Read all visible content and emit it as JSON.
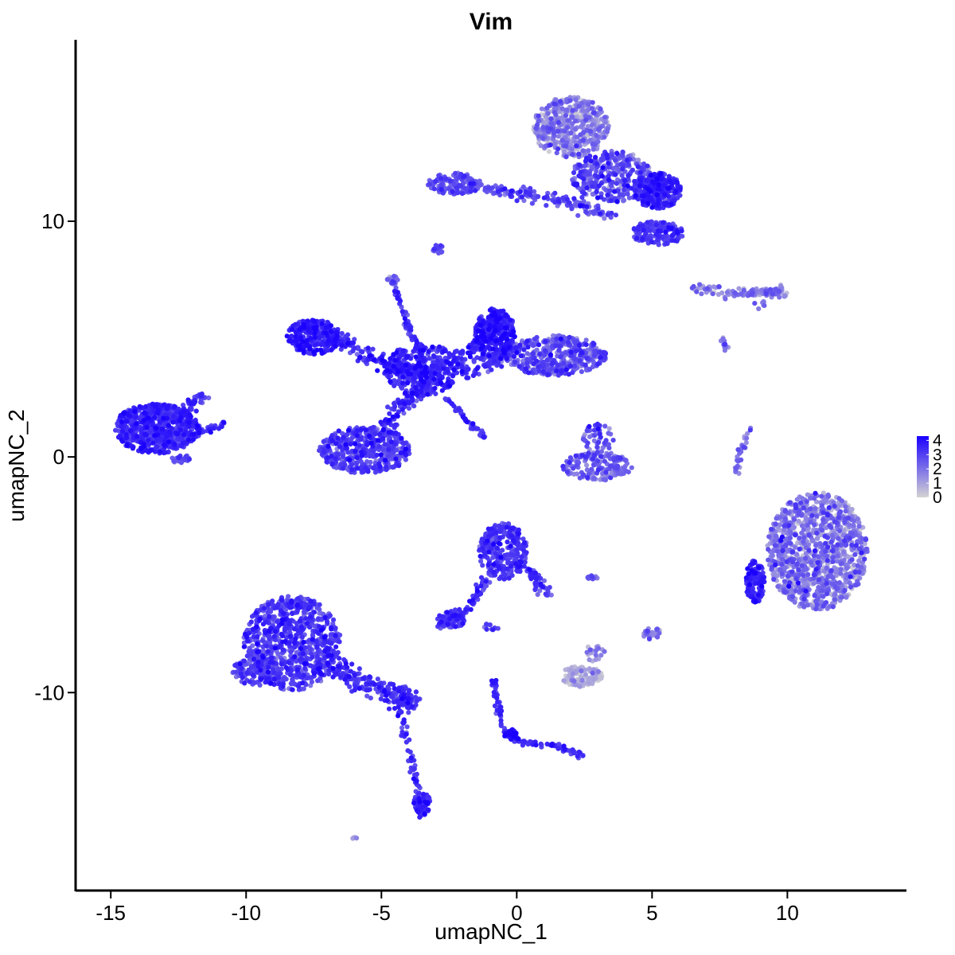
{
  "chart_data": {
    "type": "scatter",
    "title": "Vim",
    "xlabel": "umapNC_1",
    "ylabel": "umapNC_2",
    "xlim": [
      -16.3,
      14.4
    ],
    "ylim": [
      -18.4,
      17.7
    ],
    "x_ticks": [
      -15,
      -10,
      -5,
      0,
      5,
      10
    ],
    "x_tick_labels": [
      "-15",
      "-10",
      "-5",
      "0",
      "5",
      "10"
    ],
    "y_ticks": [
      -10,
      0,
      10
    ],
    "y_tick_labels": [
      "-10",
      "0",
      "10"
    ],
    "grid": false,
    "legend": {
      "position": "right",
      "type": "colorbar",
      "ticks": [
        0,
        1,
        2,
        3,
        4
      ],
      "labels": [
        "0",
        "1",
        "2",
        "3",
        "4"
      ],
      "range": [
        0,
        4.3
      ],
      "colors": [
        "#d3d3d3",
        "#1a00ff"
      ]
    },
    "color_scale": {
      "low": "#d3d3d3",
      "high": "#1a00ff"
    },
    "clusters": [
      {
        "name": "left-blob",
        "shape": "blob",
        "cx": -13.3,
        "cy": 1.2,
        "rx": 1.6,
        "ry": 1.05,
        "n": 650,
        "expr": 3.3,
        "jitter": 0.5
      },
      {
        "name": "left-blob-tail",
        "shape": "line",
        "path": [
          [
            -12.6,
            1.6
          ],
          [
            -11.6,
            2.6
          ]
        ],
        "width": 0.25,
        "n": 60,
        "expr": 3.1,
        "jitter": 0.5
      },
      {
        "name": "left-blob-tail2",
        "shape": "line",
        "path": [
          [
            -12.5,
            0.8
          ],
          [
            -10.8,
            1.4
          ]
        ],
        "width": 0.2,
        "n": 40,
        "expr": 3.0,
        "jitter": 0.5
      },
      {
        "name": "left-blob-foot",
        "shape": "blob",
        "cx": -12.4,
        "cy": -0.1,
        "rx": 0.35,
        "ry": 0.2,
        "n": 25,
        "expr": 2.6,
        "jitter": 0.5
      },
      {
        "name": "center-left-top",
        "shape": "blob",
        "cx": -7.5,
        "cy": 5.1,
        "rx": 1.0,
        "ry": 0.75,
        "n": 260,
        "expr": 3.5,
        "jitter": 0.5
      },
      {
        "name": "center-left-bottom",
        "shape": "blob",
        "cx": -5.6,
        "cy": 0.3,
        "rx": 1.7,
        "ry": 1.0,
        "n": 450,
        "expr": 2.9,
        "jitter": 0.6
      },
      {
        "name": "center-right-top",
        "shape": "blob",
        "cx": -0.8,
        "cy": 5.2,
        "rx": 0.75,
        "ry": 1.1,
        "n": 300,
        "expr": 3.6,
        "jitter": 0.5
      },
      {
        "name": "center-right-fan",
        "shape": "blob",
        "cx": 1.4,
        "cy": 4.3,
        "rx": 1.9,
        "ry": 0.85,
        "n": 420,
        "expr": 2.5,
        "jitter": 0.7
      },
      {
        "name": "center-core",
        "shape": "blob",
        "cx": -3.5,
        "cy": 3.7,
        "rx": 1.4,
        "ry": 1.1,
        "n": 260,
        "expr": 3.4,
        "jitter": 0.5
      },
      {
        "name": "center-arm-1",
        "shape": "line",
        "path": [
          [
            -7.0,
            5.2
          ],
          [
            -5.0,
            4.0
          ],
          [
            -3.5,
            3.5
          ]
        ],
        "width": 0.35,
        "n": 160,
        "expr": 3.4,
        "jitter": 0.5
      },
      {
        "name": "center-arm-2",
        "shape": "line",
        "path": [
          [
            -5.0,
            1.2
          ],
          [
            -3.8,
            2.8
          ],
          [
            -2.2,
            4.2
          ],
          [
            -1.0,
            5.0
          ]
        ],
        "width": 0.35,
        "n": 200,
        "expr": 3.3,
        "jitter": 0.5
      },
      {
        "name": "center-arm-3",
        "shape": "line",
        "path": [
          [
            -4.6,
            7.5
          ],
          [
            -4.0,
            5.5
          ],
          [
            -3.4,
            4.0
          ]
        ],
        "width": 0.12,
        "n": 70,
        "expr": 3.2,
        "jitter": 0.5
      },
      {
        "name": "center-arm-4",
        "shape": "line",
        "path": [
          [
            -2.6,
            2.5
          ],
          [
            -1.2,
            0.8
          ]
        ],
        "width": 0.1,
        "n": 50,
        "expr": 3.3,
        "jitter": 0.5
      },
      {
        "name": "center-arm-5",
        "shape": "line",
        "path": [
          [
            -2.0,
            3.6
          ],
          [
            0.0,
            4.5
          ]
        ],
        "width": 0.35,
        "n": 80,
        "expr": 3.0,
        "jitter": 0.6
      },
      {
        "name": "center-speck",
        "shape": "blob",
        "cx": -4.6,
        "cy": 7.5,
        "rx": 0.2,
        "ry": 0.2,
        "n": 15,
        "expr": 2.0,
        "jitter": 0.6
      },
      {
        "name": "top-right-head",
        "shape": "blob",
        "cx": 2.0,
        "cy": 14.0,
        "rx": 1.4,
        "ry": 1.3,
        "n": 500,
        "expr": 1.3,
        "jitter": 0.8
      },
      {
        "name": "top-right-body",
        "shape": "blob",
        "cx": 3.5,
        "cy": 11.9,
        "rx": 1.5,
        "ry": 1.1,
        "n": 330,
        "expr": 2.6,
        "jitter": 0.7
      },
      {
        "name": "top-right-right",
        "shape": "blob",
        "cx": 5.2,
        "cy": 11.3,
        "rx": 0.9,
        "ry": 0.75,
        "n": 260,
        "expr": 3.4,
        "jitter": 0.5
      },
      {
        "name": "top-right-low",
        "shape": "blob",
        "cx": 5.2,
        "cy": 9.5,
        "rx": 1.0,
        "ry": 0.5,
        "n": 160,
        "expr": 3.0,
        "jitter": 0.5
      },
      {
        "name": "top-left-arm",
        "shape": "blob",
        "cx": -2.3,
        "cy": 11.6,
        "rx": 1.0,
        "ry": 0.45,
        "n": 140,
        "expr": 2.5,
        "jitter": 0.6
      },
      {
        "name": "top-arm-line",
        "shape": "line",
        "path": [
          [
            -1.5,
            11.4
          ],
          [
            0.5,
            11.1
          ],
          [
            2.0,
            10.8
          ],
          [
            3.5,
            10.2
          ]
        ],
        "width": 0.25,
        "n": 150,
        "expr": 2.7,
        "jitter": 0.6
      },
      {
        "name": "top-speck",
        "shape": "blob",
        "cx": -2.9,
        "cy": 8.8,
        "rx": 0.2,
        "ry": 0.2,
        "n": 14,
        "expr": 2.9,
        "jitter": 0.5
      },
      {
        "name": "right-thin",
        "shape": "line",
        "path": [
          [
            6.6,
            7.2
          ],
          [
            8.0,
            6.9
          ],
          [
            9.0,
            7.0
          ],
          [
            10.0,
            6.9
          ]
        ],
        "width": 0.2,
        "n": 110,
        "expr": 1.6,
        "jitter": 0.7
      },
      {
        "name": "right-thin-2",
        "shape": "line",
        "path": [
          [
            8.8,
            6.3
          ],
          [
            9.8,
            7.2
          ]
        ],
        "width": 0.15,
        "n": 20,
        "expr": 2.0,
        "jitter": 0.6
      },
      {
        "name": "right-specks",
        "shape": "blob",
        "cx": 7.7,
        "cy": 4.8,
        "rx": 0.2,
        "ry": 0.3,
        "n": 10,
        "expr": 2.0,
        "jitter": 0.6
      },
      {
        "name": "mid-right-small",
        "shape": "blob",
        "cx": 3.0,
        "cy": -0.4,
        "rx": 1.3,
        "ry": 0.6,
        "n": 170,
        "expr": 2.1,
        "jitter": 0.7
      },
      {
        "name": "mid-right-small-2",
        "shape": "blob",
        "cx": 3.0,
        "cy": 0.8,
        "rx": 0.6,
        "ry": 0.6,
        "n": 50,
        "expr": 2.3,
        "jitter": 0.7
      },
      {
        "name": "mid-right-line",
        "shape": "line",
        "path": [
          [
            8.1,
            -0.7
          ],
          [
            8.3,
            0.3
          ],
          [
            8.6,
            1.2
          ]
        ],
        "width": 0.12,
        "n": 30,
        "expr": 2.0,
        "jitter": 0.7
      },
      {
        "name": "far-right-big",
        "shape": "blob",
        "cx": 11.1,
        "cy": -4.0,
        "rx": 1.85,
        "ry": 2.5,
        "n": 1100,
        "expr": 1.6,
        "jitter": 0.8
      },
      {
        "name": "far-right-edge",
        "shape": "blob",
        "cx": 8.8,
        "cy": -5.3,
        "rx": 0.35,
        "ry": 0.9,
        "n": 130,
        "expr": 3.4,
        "jitter": 0.5
      },
      {
        "name": "lower-mid-blob",
        "shape": "blob",
        "cx": -0.5,
        "cy": -4.0,
        "rx": 0.9,
        "ry": 1.2,
        "n": 260,
        "expr": 3.1,
        "jitter": 0.5
      },
      {
        "name": "lower-mid-tail",
        "shape": "line",
        "path": [
          [
            0.1,
            -4.4
          ],
          [
            1.2,
            -5.8
          ]
        ],
        "width": 0.25,
        "n": 55,
        "expr": 3.0,
        "jitter": 0.5
      },
      {
        "name": "lower-mid-arm",
        "shape": "line",
        "path": [
          [
            -0.9,
            -4.8
          ],
          [
            -1.9,
            -6.6
          ],
          [
            -2.8,
            -7.0
          ]
        ],
        "width": 0.2,
        "n": 80,
        "expr": 3.1,
        "jitter": 0.5
      },
      {
        "name": "lower-mid-foot",
        "shape": "blob",
        "cx": -2.4,
        "cy": -6.9,
        "rx": 0.55,
        "ry": 0.35,
        "n": 70,
        "expr": 3.1,
        "jitter": 0.5
      },
      {
        "name": "lower-mid-specks",
        "shape": "blob",
        "cx": -0.9,
        "cy": -7.2,
        "rx": 0.4,
        "ry": 0.15,
        "n": 10,
        "expr": 2.8,
        "jitter": 0.5
      },
      {
        "name": "bottom-left-big",
        "shape": "blob",
        "cx": -8.3,
        "cy": -7.9,
        "rx": 1.8,
        "ry": 2.0,
        "n": 750,
        "expr": 2.9,
        "jitter": 0.6
      },
      {
        "name": "bottom-left-lobe",
        "shape": "blob",
        "cx": -9.6,
        "cy": -9.1,
        "rx": 0.9,
        "ry": 0.6,
        "n": 150,
        "expr": 2.8,
        "jitter": 0.6
      },
      {
        "name": "bottom-left-tail",
        "shape": "line",
        "path": [
          [
            -7.2,
            -8.6
          ],
          [
            -5.8,
            -9.5
          ],
          [
            -4.5,
            -10.1
          ],
          [
            -3.8,
            -10.4
          ]
        ],
        "width": 0.45,
        "n": 230,
        "expr": 3.2,
        "jitter": 0.5
      },
      {
        "name": "bottom-left-tail2",
        "shape": "line",
        "path": [
          [
            -4.4,
            -10.6
          ],
          [
            -3.9,
            -12.5
          ],
          [
            -3.6,
            -14.5
          ],
          [
            -3.5,
            -15.2
          ]
        ],
        "width": 0.15,
        "n": 80,
        "expr": 3.1,
        "jitter": 0.5
      },
      {
        "name": "bottom-left-foot",
        "shape": "blob",
        "cx": -3.5,
        "cy": -14.7,
        "rx": 0.3,
        "ry": 0.5,
        "n": 60,
        "expr": 3.3,
        "jitter": 0.5
      },
      {
        "name": "bottom-speck",
        "shape": "blob",
        "cx": -6.0,
        "cy": -16.2,
        "rx": 0.15,
        "ry": 0.1,
        "n": 4,
        "expr": 1.5,
        "jitter": 0.5
      },
      {
        "name": "bottom-mid-line",
        "shape": "line",
        "path": [
          [
            -0.9,
            -9.4
          ],
          [
            -0.5,
            -11.5
          ],
          [
            0.0,
            -12.1
          ],
          [
            1.2,
            -12.2
          ],
          [
            2.5,
            -12.7
          ]
        ],
        "width": 0.12,
        "n": 110,
        "expr": 3.3,
        "jitter": 0.5
      },
      {
        "name": "bottom-mid-knot",
        "shape": "blob",
        "cx": -0.2,
        "cy": -11.8,
        "rx": 0.25,
        "ry": 0.25,
        "n": 30,
        "expr": 3.8,
        "jitter": 0.4
      },
      {
        "name": "gray-cluster",
        "shape": "blob",
        "cx": 2.4,
        "cy": -9.3,
        "rx": 0.75,
        "ry": 0.45,
        "n": 110,
        "expr": 0.6,
        "jitter": 0.6
      },
      {
        "name": "gray-cluster-top",
        "shape": "blob",
        "cx": 2.9,
        "cy": -8.3,
        "rx": 0.4,
        "ry": 0.4,
        "n": 20,
        "expr": 1.3,
        "jitter": 0.6
      },
      {
        "name": "small-right-mid",
        "shape": "blob",
        "cx": 5.0,
        "cy": -7.5,
        "rx": 0.35,
        "ry": 0.25,
        "n": 22,
        "expr": 2.0,
        "jitter": 0.6
      },
      {
        "name": "small-mid",
        "shape": "blob",
        "cx": 2.8,
        "cy": -5.1,
        "rx": 0.3,
        "ry": 0.12,
        "n": 10,
        "expr": 2.5,
        "jitter": 0.6
      }
    ]
  }
}
